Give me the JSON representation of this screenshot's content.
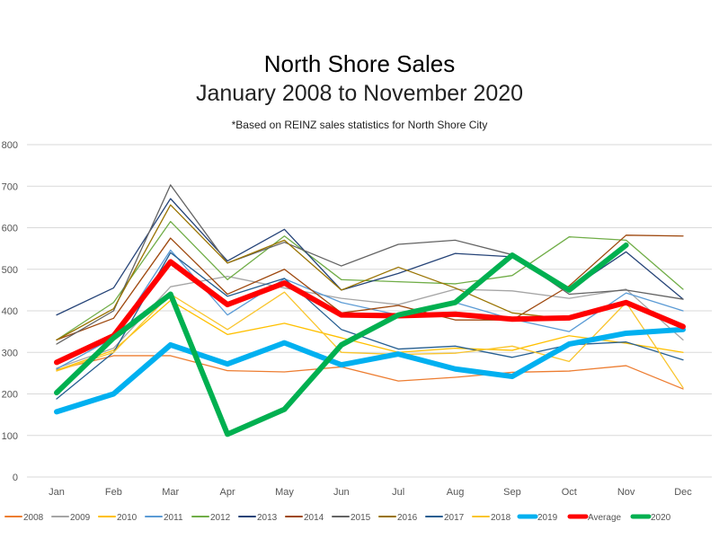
{
  "chart_data": {
    "type": "line",
    "title": "North Shore Sales",
    "subtitle": "January 2008 to November 2020",
    "note": "*Based on REINZ sales statistics for North Shore City",
    "categories": [
      "Jan",
      "Feb",
      "Mar",
      "Apr",
      "May",
      "Jun",
      "Jul",
      "Aug",
      "Sep",
      "Oct",
      "Nov",
      "Dec"
    ],
    "ylim": [
      0,
      800
    ],
    "yticks": [
      0,
      100,
      200,
      300,
      400,
      500,
      600,
      700,
      800
    ],
    "grid": true,
    "legend": "bottom",
    "series": [
      {
        "name": "2008",
        "color": "#ED7D31",
        "width": 1.3,
        "values": [
          258,
          292,
          292,
          256,
          253,
          265,
          231,
          240,
          252,
          255,
          268,
          212
        ]
      },
      {
        "name": "2009",
        "color": "#A5A5A5",
        "width": 1.3,
        "values": [
          262,
          310,
          458,
          483,
          455,
          430,
          415,
          452,
          448,
          430,
          452,
          330
        ]
      },
      {
        "name": "2010",
        "color": "#FFC000",
        "width": 1.3,
        "values": [
          257,
          305,
          425,
          343,
          370,
          335,
          300,
          310,
          305,
          340,
          322,
          300
        ]
      },
      {
        "name": "2011",
        "color": "#5B9BD5",
        "width": 1.3,
        "values": [
          260,
          335,
          546,
          390,
          477,
          420,
          390,
          420,
          380,
          350,
          443,
          400
        ]
      },
      {
        "name": "2012",
        "color": "#70AD47",
        "width": 1.3,
        "values": [
          330,
          420,
          615,
          475,
          580,
          475,
          470,
          465,
          485,
          578,
          570,
          452
        ]
      },
      {
        "name": "2013",
        "color": "#264478",
        "width": 1.3,
        "values": [
          390,
          455,
          670,
          520,
          596,
          450,
          490,
          538,
          530,
          450,
          542,
          428
        ]
      },
      {
        "name": "2014",
        "color": "#9E480E",
        "width": 1.3,
        "values": [
          330,
          382,
          575,
          440,
          500,
          395,
          413,
          378,
          378,
          460,
          582,
          580
        ]
      },
      {
        "name": "2015",
        "color": "#636363",
        "width": 1.3,
        "values": [
          320,
          400,
          703,
          515,
          565,
          508,
          560,
          570,
          535,
          440,
          450,
          428
        ]
      },
      {
        "name": "2016",
        "color": "#997300",
        "width": 1.3,
        "values": [
          330,
          405,
          655,
          515,
          570,
          450,
          505,
          455,
          395,
          380,
          420,
          365
        ]
      },
      {
        "name": "2017",
        "color": "#255E91",
        "width": 1.3,
        "values": [
          188,
          300,
          540,
          435,
          478,
          355,
          308,
          315,
          288,
          318,
          325,
          282
        ]
      },
      {
        "name": "2018",
        "color": "#F9C52E",
        "width": 1.3,
        "values": [
          255,
          300,
          440,
          355,
          445,
          300,
          295,
          298,
          315,
          278,
          420,
          215
        ]
      },
      {
        "name": "2019",
        "color": "#00B0F0",
        "width": 6,
        "values": [
          157,
          200,
          318,
          272,
          323,
          270,
          296,
          260,
          242,
          320,
          346,
          355
        ]
      },
      {
        "name": "Average",
        "color": "#FF0000",
        "width": 6,
        "values": [
          276,
          340,
          518,
          415,
          467,
          390,
          388,
          392,
          380,
          383,
          420,
          362
        ]
      },
      {
        "name": "2020",
        "color": "#00B050",
        "width": 6,
        "values": [
          203,
          335,
          440,
          103,
          163,
          318,
          390,
          420,
          534,
          450,
          558,
          null
        ]
      }
    ]
  }
}
